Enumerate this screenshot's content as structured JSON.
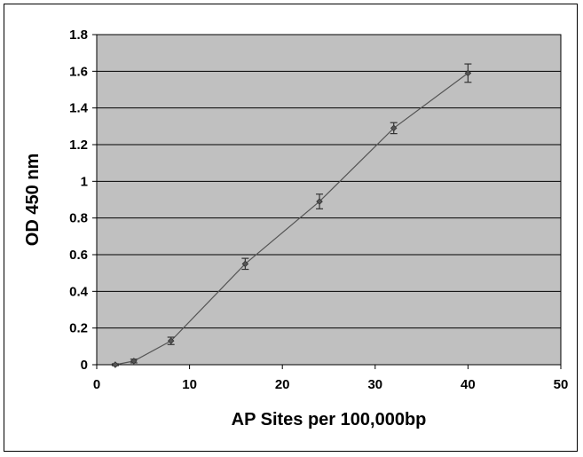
{
  "chart_data": {
    "type": "scatter",
    "title": "",
    "xlabel": "AP Sites per 100,000bp",
    "ylabel": "OD 450 nm",
    "xlim": [
      0,
      50
    ],
    "ylim": [
      0,
      1.8
    ],
    "x_ticks": [
      0,
      10,
      20,
      30,
      40,
      50
    ],
    "y_ticks": [
      0,
      0.2,
      0.4,
      0.6,
      0.8,
      1,
      1.2,
      1.4,
      1.6,
      1.8
    ],
    "x_tick_labels": [
      "0",
      "10",
      "20",
      "30",
      "40",
      "50"
    ],
    "y_tick_labels": [
      "0",
      "0.2",
      "0.4",
      "0.6",
      "0.8",
      "1",
      "1.2",
      "1.4",
      "1.6",
      "1.8"
    ],
    "grid": "horizontal",
    "legend": "none",
    "plot_background": "#c0c0c0",
    "series": [
      {
        "x": [
          2,
          4,
          8,
          16,
          24,
          32,
          40
        ],
        "y": [
          0.0,
          0.02,
          0.13,
          0.55,
          0.89,
          1.29,
          1.59
        ],
        "error": [
          0.005,
          0.01,
          0.02,
          0.03,
          0.04,
          0.03,
          0.05
        ],
        "color": "#555555",
        "marker": "diamond",
        "line": true
      }
    ]
  }
}
